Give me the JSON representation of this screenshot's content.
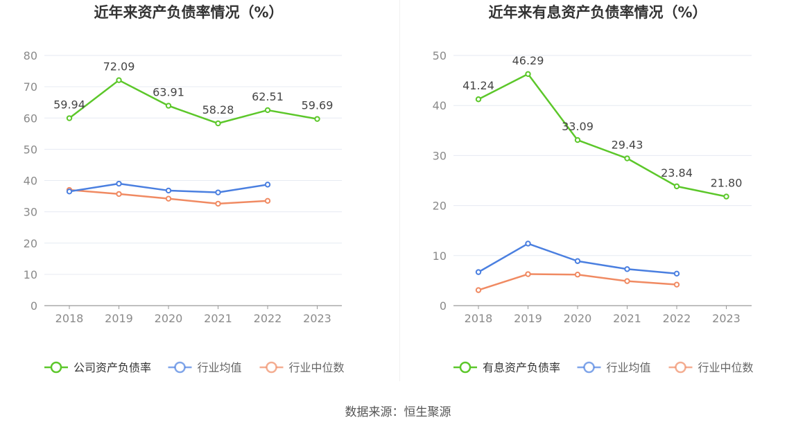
{
  "source_label": "数据来源：恒生聚源",
  "colors": {
    "company": "#5cc72a",
    "industry_avg": "#4a7fe0",
    "industry_median": "#f08a62"
  },
  "chart_data": [
    {
      "type": "line",
      "title": "近年来资产负债率情况（%）",
      "x": [
        "2018",
        "2019",
        "2020",
        "2021",
        "2022",
        "2023"
      ],
      "ylim": [
        0,
        80
      ],
      "yticks": [
        0,
        10,
        20,
        30,
        40,
        50,
        60,
        70,
        80
      ],
      "grid": true,
      "legend_position": "bottom",
      "series": [
        {
          "name": "公司资产负债率",
          "color": "#5cc72a",
          "values": [
            59.94,
            72.09,
            63.91,
            58.28,
            62.51,
            59.69
          ],
          "labels": [
            "59.94",
            "72.09",
            "63.91",
            "58.28",
            "62.51",
            "59.69"
          ]
        },
        {
          "name": "行业均值",
          "color": "#4a7fe0",
          "values": [
            36.5,
            39.0,
            36.8,
            36.2,
            38.7,
            null
          ]
        },
        {
          "name": "行业中位数",
          "color": "#f08a62",
          "values": [
            37.0,
            35.7,
            34.2,
            32.6,
            33.5,
            null
          ]
        }
      ]
    },
    {
      "type": "line",
      "title": "近年来有息资产负债率情况（%）",
      "x": [
        "2018",
        "2019",
        "2020",
        "2021",
        "2022",
        "2023"
      ],
      "ylim": [
        0,
        50
      ],
      "yticks": [
        0,
        10,
        20,
        30,
        40,
        50
      ],
      "grid": true,
      "legend_position": "bottom",
      "series": [
        {
          "name": "有息资产负债率",
          "color": "#5cc72a",
          "values": [
            41.24,
            46.29,
            33.09,
            29.43,
            23.84,
            21.8
          ],
          "labels": [
            "41.24",
            "46.29",
            "33.09",
            "29.43",
            "23.84",
            "21.80"
          ]
        },
        {
          "name": "行业均值",
          "color": "#4a7fe0",
          "values": [
            6.7,
            12.4,
            8.9,
            7.3,
            6.4,
            null
          ]
        },
        {
          "name": "行业中位数",
          "color": "#f08a62",
          "values": [
            3.1,
            6.3,
            6.2,
            4.9,
            4.2,
            null
          ]
        }
      ]
    }
  ]
}
